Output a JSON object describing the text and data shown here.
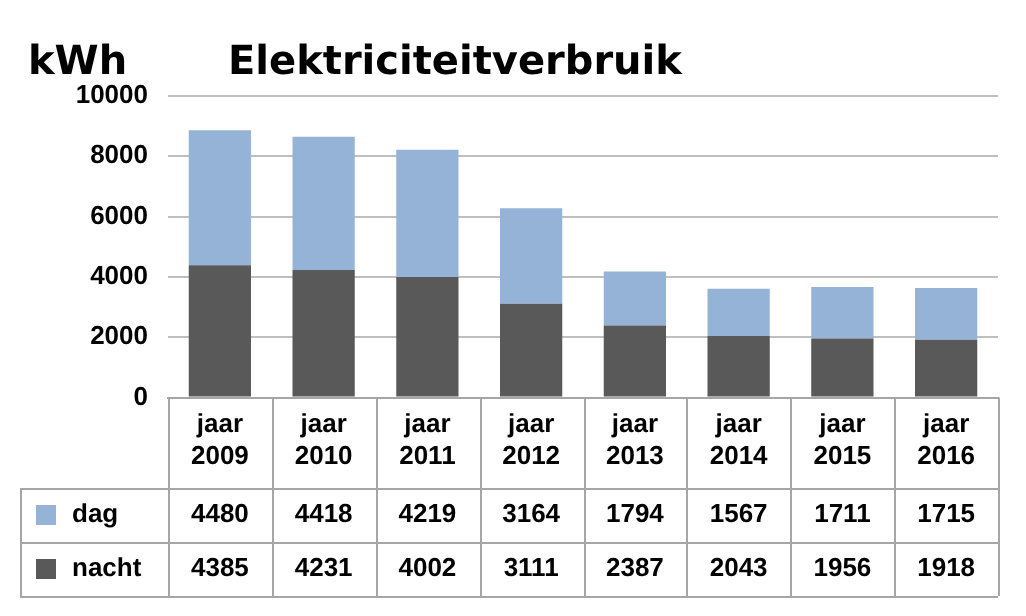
{
  "chart_data": {
    "type": "bar",
    "title": "Elektriciteitverbruik",
    "ylabel": "kWh",
    "stacked": true,
    "categories": [
      "jaar 2009",
      "jaar 2010",
      "jaar 2011",
      "jaar 2012",
      "jaar 2013",
      "jaar 2014",
      "jaar 2015",
      "jaar 2016"
    ],
    "series": [
      {
        "name": "nacht",
        "color": "#595959",
        "values": [
          4385,
          4231,
          4002,
          3111,
          2387,
          2043,
          1956,
          1918
        ]
      },
      {
        "name": "dag",
        "color": "#95b3d7",
        "values": [
          4480,
          4418,
          4219,
          3164,
          1794,
          1567,
          1711,
          1715
        ]
      }
    ],
    "ylim": [
      0,
      10000
    ],
    "yticks": [
      0,
      2000,
      4000,
      6000,
      8000,
      10000
    ],
    "grid": "y",
    "legend": "bottom left",
    "data_labels": true
  }
}
